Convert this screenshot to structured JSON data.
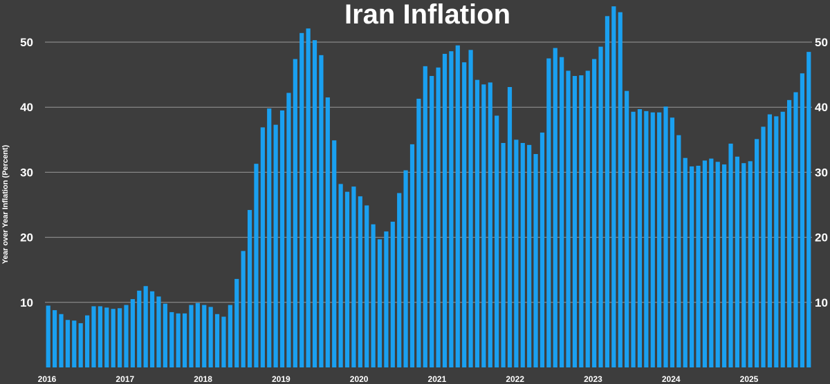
{
  "chart_data": {
    "type": "bar",
    "title": "Iran Inflation",
    "ylabel": "Year over Year Inflation (Percent)",
    "xlabel": "",
    "ylim": [
      0,
      56
    ],
    "yticks": [
      10,
      20,
      30,
      40,
      50
    ],
    "grid": true,
    "y_axis_both_sides": true,
    "bar_color": "#1aa0f0",
    "background_color": "#3d3d3d",
    "x_tick_labels": [
      "2016",
      "2017",
      "2018",
      "2019",
      "2020",
      "2021",
      "2022",
      "2023",
      "2024",
      "2025"
    ],
    "series": [
      {
        "x": [
          "2016-01",
          "2016-02",
          "2016-03",
          "2016-04",
          "2016-05",
          "2016-06",
          "2016-07",
          "2016-08",
          "2016-09",
          "2016-10",
          "2016-11",
          "2016-12",
          "2017-01",
          "2017-02",
          "2017-03",
          "2017-04",
          "2017-05",
          "2017-06",
          "2017-07",
          "2017-08",
          "2017-09",
          "2017-10",
          "2017-11",
          "2017-12",
          "2018-01",
          "2018-02",
          "2018-03",
          "2018-04",
          "2018-05",
          "2018-06",
          "2018-07",
          "2018-08",
          "2018-09",
          "2018-10",
          "2018-11",
          "2018-12",
          "2019-01",
          "2019-02",
          "2019-03",
          "2019-04",
          "2019-05",
          "2019-06",
          "2019-07",
          "2019-08",
          "2019-09",
          "2019-10",
          "2019-11",
          "2019-12",
          "2020-01",
          "2020-02",
          "2020-03",
          "2020-04",
          "2020-05",
          "2020-06",
          "2020-07",
          "2020-08",
          "2020-09",
          "2020-10",
          "2020-11",
          "2020-12",
          "2021-01",
          "2021-02",
          "2021-03",
          "2021-04",
          "2021-05",
          "2021-06",
          "2021-07",
          "2021-08",
          "2021-09",
          "2021-10",
          "2021-11",
          "2021-12",
          "2022-01",
          "2022-02",
          "2022-03",
          "2022-04",
          "2022-05",
          "2022-06",
          "2022-07",
          "2022-08",
          "2022-09",
          "2022-10",
          "2022-11",
          "2022-12",
          "2023-01",
          "2023-02",
          "2023-03",
          "2023-04",
          "2023-05",
          "2023-06",
          "2023-07",
          "2023-08",
          "2023-09",
          "2023-10",
          "2023-11",
          "2023-12",
          "2024-01",
          "2024-02",
          "2024-03",
          "2024-04",
          "2024-05",
          "2024-06",
          "2024-07",
          "2024-08",
          "2024-09",
          "2024-10",
          "2024-11",
          "2024-12",
          "2025-01",
          "2025-02",
          "2025-03",
          "2025-04",
          "2025-05",
          "2025-06",
          "2025-07",
          "2025-08",
          "2025-09",
          "2025-10"
        ],
        "values": [
          9.5,
          8.8,
          8.2,
          7.3,
          7.2,
          6.8,
          8.0,
          9.4,
          9.4,
          9.2,
          9.0,
          9.1,
          9.6,
          10.5,
          11.8,
          12.5,
          11.7,
          10.9,
          9.8,
          8.5,
          8.3,
          8.3,
          9.6,
          9.9,
          9.6,
          9.3,
          8.2,
          7.8,
          9.6,
          13.6,
          17.9,
          24.2,
          31.3,
          36.9,
          39.8,
          37.3,
          39.5,
          42.2,
          47.4,
          51.4,
          52.1,
          50.3,
          48.0,
          41.5,
          34.9,
          28.2,
          27.0,
          27.8,
          26.3,
          24.9,
          22.0,
          19.7,
          20.9,
          22.4,
          26.8,
          30.3,
          34.3,
          41.3,
          46.3,
          44.8,
          46.1,
          48.2,
          48.6,
          49.5,
          46.9,
          48.8,
          44.2,
          43.5,
          43.8,
          38.7,
          34.5,
          43.1,
          35.0,
          34.5,
          34.2,
          32.8,
          36.1,
          47.5,
          49.1,
          47.7,
          45.6,
          44.8,
          44.9,
          45.6,
          47.4,
          49.3,
          54.0,
          55.5,
          54.6,
          42.5,
          39.3,
          39.7,
          39.4,
          39.2,
          39.2,
          40.1,
          38.4,
          35.7,
          32.2,
          30.9,
          31.0,
          31.8,
          32.1,
          31.6,
          31.2,
          34.4,
          32.4,
          31.4,
          31.7,
          35.1,
          37.0,
          38.9,
          38.6,
          39.3,
          41.1,
          42.3,
          45.2,
          48.5
        ]
      }
    ]
  }
}
